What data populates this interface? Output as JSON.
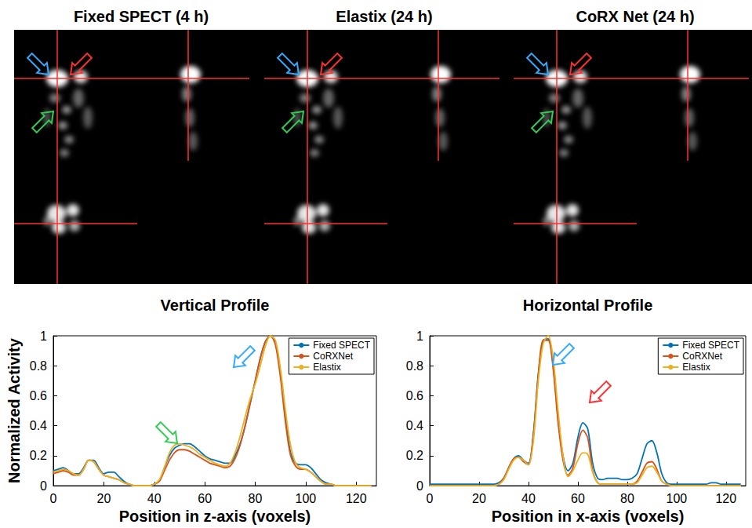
{
  "image_panels": {
    "titles": [
      "Fixed SPECT (4 h)",
      "Elastix (24 h)",
      "CoRX Net (24 h)"
    ]
  },
  "chart_data": [
    {
      "type": "line",
      "title": "Vertical Profile",
      "x_label": "Position in z-axis (voxels)",
      "y_label": "Normalized Activity",
      "xlim": [
        0,
        128
      ],
      "xticks": [
        0,
        20,
        40,
        60,
        80,
        100,
        120
      ],
      "ylim": [
        0,
        1
      ],
      "yticks": [
        0,
        0.2,
        0.4,
        0.6,
        0.8,
        1
      ],
      "grid": false,
      "legend": "top-right",
      "x": [
        0,
        2,
        4,
        6,
        8,
        10,
        12,
        14,
        16,
        18,
        20,
        22,
        24,
        26,
        28,
        30,
        32,
        34,
        36,
        38,
        40,
        42,
        44,
        46,
        48,
        50,
        52,
        54,
        56,
        58,
        60,
        62,
        64,
        66,
        68,
        70,
        72,
        74,
        76,
        78,
        80,
        82,
        84,
        86,
        88,
        90,
        92,
        94,
        96,
        98,
        100,
        102,
        104,
        106,
        108,
        110,
        112,
        114,
        116,
        118,
        120,
        122,
        124,
        126
      ],
      "series": [
        {
          "name": "Fixed SPECT",
          "color": "#0072BD",
          "values": [
            0.1,
            0.11,
            0.12,
            0.1,
            0.08,
            0.08,
            0.12,
            0.17,
            0.17,
            0.12,
            0.08,
            0.09,
            0.09,
            0.06,
            0.03,
            0.01,
            0.0,
            0.0,
            0.0,
            0.0,
            0.01,
            0.03,
            0.12,
            0.2,
            0.25,
            0.27,
            0.28,
            0.28,
            0.26,
            0.23,
            0.2,
            0.18,
            0.17,
            0.16,
            0.15,
            0.15,
            0.2,
            0.28,
            0.4,
            0.55,
            0.7,
            0.85,
            0.96,
            1.0,
            0.95,
            0.75,
            0.45,
            0.22,
            0.15,
            0.14,
            0.14,
            0.12,
            0.08,
            0.04,
            0.02,
            0.01,
            0.0,
            0.0,
            0.0,
            0.0,
            0.0,
            0.0,
            0.0,
            0.0
          ]
        },
        {
          "name": "CoRXNet",
          "color": "#D95319",
          "values": [
            0.08,
            0.09,
            0.1,
            0.09,
            0.07,
            0.07,
            0.11,
            0.17,
            0.16,
            0.11,
            0.07,
            0.06,
            0.05,
            0.04,
            0.02,
            0.01,
            0.0,
            0.0,
            0.0,
            0.0,
            0.01,
            0.03,
            0.1,
            0.17,
            0.22,
            0.24,
            0.24,
            0.23,
            0.21,
            0.19,
            0.17,
            0.15,
            0.14,
            0.13,
            0.12,
            0.13,
            0.18,
            0.27,
            0.4,
            0.55,
            0.7,
            0.85,
            0.96,
            1.0,
            0.94,
            0.72,
            0.42,
            0.2,
            0.13,
            0.11,
            0.11,
            0.09,
            0.06,
            0.03,
            0.01,
            0.01,
            0.0,
            0.0,
            0.0,
            0.0,
            0.0,
            0.0,
            0.0,
            0.0
          ]
        },
        {
          "name": "Elastix",
          "color": "#EDB120",
          "values": [
            0.09,
            0.1,
            0.11,
            0.1,
            0.08,
            0.07,
            0.11,
            0.17,
            0.16,
            0.11,
            0.07,
            0.06,
            0.05,
            0.04,
            0.02,
            0.01,
            0.0,
            0.0,
            0.0,
            0.0,
            0.01,
            0.04,
            0.12,
            0.22,
            0.27,
            0.28,
            0.27,
            0.26,
            0.24,
            0.21,
            0.19,
            0.17,
            0.15,
            0.14,
            0.13,
            0.15,
            0.22,
            0.33,
            0.46,
            0.58,
            0.68,
            0.8,
            0.93,
            1.0,
            0.97,
            0.78,
            0.5,
            0.27,
            0.15,
            0.12,
            0.11,
            0.09,
            0.06,
            0.03,
            0.01,
            0.01,
            0.0,
            0.0,
            0.0,
            0.0,
            0.0,
            0.0,
            0.0,
            0.0
          ]
        }
      ]
    },
    {
      "type": "line",
      "title": "Horizontal Profile",
      "x_label": "Position in x-axis (voxels)",
      "xlim": [
        0,
        128
      ],
      "xticks": [
        0,
        20,
        40,
        60,
        80,
        100,
        120
      ],
      "ylim": [
        0,
        1
      ],
      "yticks": [
        0,
        0.2,
        0.4,
        0.6,
        0.8,
        1
      ],
      "grid": false,
      "legend": "top-right",
      "x": [
        0,
        2,
        4,
        6,
        8,
        10,
        12,
        14,
        16,
        18,
        20,
        22,
        24,
        26,
        28,
        30,
        32,
        34,
        36,
        38,
        40,
        42,
        44,
        46,
        48,
        50,
        52,
        54,
        56,
        58,
        60,
        62,
        64,
        66,
        68,
        70,
        72,
        74,
        76,
        78,
        80,
        82,
        84,
        86,
        88,
        90,
        92,
        94,
        96,
        98,
        100,
        102,
        104,
        106,
        108,
        110,
        112,
        114,
        116,
        118,
        120,
        122,
        124,
        126
      ],
      "series": [
        {
          "name": "Fixed SPECT",
          "color": "#0072BD",
          "values": [
            0.01,
            0.01,
            0.01,
            0.01,
            0.01,
            0.01,
            0.01,
            0.01,
            0.01,
            0.01,
            0.01,
            0.01,
            0.01,
            0.01,
            0.02,
            0.05,
            0.12,
            0.18,
            0.2,
            0.17,
            0.15,
            0.35,
            0.75,
            0.97,
            0.98,
            0.8,
            0.45,
            0.2,
            0.1,
            0.15,
            0.32,
            0.42,
            0.38,
            0.15,
            0.05,
            0.04,
            0.05,
            0.05,
            0.05,
            0.04,
            0.04,
            0.05,
            0.08,
            0.18,
            0.28,
            0.3,
            0.22,
            0.08,
            0.02,
            0.01,
            0.01,
            0.01,
            0.01,
            0.01,
            0.01,
            0.01,
            0.01,
            0.02,
            0.02,
            0.01,
            0.01,
            0.01,
            0.01,
            0.01
          ]
        },
        {
          "name": "CoRXNet",
          "color": "#D95319",
          "values": [
            0.0,
            0.0,
            0.0,
            0.0,
            0.0,
            0.0,
            0.0,
            0.0,
            0.0,
            0.0,
            0.0,
            0.0,
            0.0,
            0.0,
            0.01,
            0.05,
            0.12,
            0.18,
            0.19,
            0.16,
            0.14,
            0.34,
            0.74,
            0.97,
            0.97,
            0.78,
            0.42,
            0.17,
            0.07,
            0.12,
            0.28,
            0.37,
            0.32,
            0.1,
            0.02,
            0.01,
            0.01,
            0.01,
            0.01,
            0.01,
            0.01,
            0.01,
            0.03,
            0.09,
            0.15,
            0.16,
            0.11,
            0.03,
            0.01,
            0.0,
            0.0,
            0.0,
            0.0,
            0.0,
            0.0,
            0.0,
            0.0,
            0.0,
            0.0,
            0.0,
            0.0,
            0.0,
            0.0,
            0.0
          ]
        },
        {
          "name": "Elastix",
          "color": "#EDB120",
          "values": [
            0.0,
            0.0,
            0.0,
            0.0,
            0.0,
            0.0,
            0.0,
            0.0,
            0.0,
            0.0,
            0.0,
            0.0,
            0.0,
            0.0,
            0.01,
            0.04,
            0.11,
            0.17,
            0.19,
            0.17,
            0.14,
            0.3,
            0.7,
            0.95,
            1.0,
            0.85,
            0.5,
            0.2,
            0.06,
            0.1,
            0.17,
            0.22,
            0.21,
            0.09,
            0.02,
            0.01,
            0.01,
            0.01,
            0.01,
            0.01,
            0.01,
            0.01,
            0.02,
            0.07,
            0.12,
            0.13,
            0.09,
            0.03,
            0.01,
            0.0,
            0.0,
            0.0,
            0.0,
            0.0,
            0.0,
            0.0,
            0.0,
            0.0,
            0.0,
            0.0,
            0.0,
            0.0,
            0.0,
            0.0
          ]
        }
      ]
    }
  ]
}
